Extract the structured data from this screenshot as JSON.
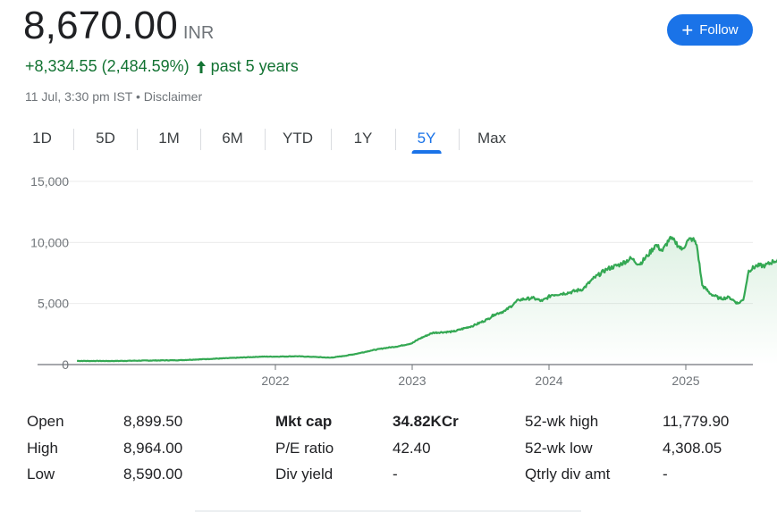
{
  "quote": {
    "price": "8,670.00",
    "currency": "INR",
    "change": "+8,334.55 (2,484.59%)",
    "change_arrow_icon": "arrow-up-icon",
    "period": "past 5 years",
    "timestamp": "11 Jul, 3:30 pm IST",
    "separator": "•",
    "disclaimer": "Disclaimer",
    "positive_color": "#137333"
  },
  "follow_button": {
    "label": "Follow",
    "icon": "plus-icon",
    "color": "#1a73e8"
  },
  "ranges": [
    "1D",
    "5D",
    "1M",
    "6M",
    "YTD",
    "1Y",
    "5Y",
    "Max"
  ],
  "active_range": "5Y",
  "chart_data": {
    "type": "area",
    "yticks": [
      "15,000",
      "10,000",
      "5,000",
      "0"
    ],
    "xticks": [
      "2022",
      "2023",
      "2024",
      "2025"
    ],
    "ylim": [
      0,
      15000
    ],
    "grid": true,
    "line_color": "#34a853",
    "points": [
      [
        2020.55,
        300
      ],
      [
        2020.8,
        290
      ],
      [
        2021.0,
        320
      ],
      [
        2021.3,
        360
      ],
      [
        2021.6,
        500
      ],
      [
        2021.9,
        650
      ],
      [
        2022.0,
        650
      ],
      [
        2022.15,
        680
      ],
      [
        2022.3,
        620
      ],
      [
        2022.4,
        560
      ],
      [
        2022.5,
        700
      ],
      [
        2022.6,
        900
      ],
      [
        2022.7,
        1150
      ],
      [
        2022.8,
        1350
      ],
      [
        2022.9,
        1500
      ],
      [
        2023.0,
        1750
      ],
      [
        2023.05,
        2100
      ],
      [
        2023.15,
        2600
      ],
      [
        2023.3,
        2700
      ],
      [
        2023.45,
        3200
      ],
      [
        2023.55,
        3700
      ],
      [
        2023.6,
        4100
      ],
      [
        2023.68,
        4400
      ],
      [
        2023.78,
        5300
      ],
      [
        2023.88,
        5450
      ],
      [
        2023.95,
        5200
      ],
      [
        2024.02,
        5700
      ],
      [
        2024.15,
        5900
      ],
      [
        2024.25,
        6200
      ],
      [
        2024.32,
        7000
      ],
      [
        2024.42,
        7800
      ],
      [
        2024.52,
        8200
      ],
      [
        2024.6,
        8700
      ],
      [
        2024.66,
        8200
      ],
      [
        2024.72,
        8900
      ],
      [
        2024.78,
        9800
      ],
      [
        2024.83,
        9300
      ],
      [
        2024.88,
        10300
      ],
      [
        2024.92,
        10100
      ],
      [
        2024.97,
        9400
      ],
      [
        2025.02,
        10200
      ],
      [
        2025.05,
        10300
      ],
      [
        2025.08,
        9800
      ],
      [
        2025.12,
        6500
      ],
      [
        2025.18,
        5800
      ],
      [
        2025.25,
        5400
      ],
      [
        2025.32,
        5500
      ],
      [
        2025.38,
        5000
      ],
      [
        2025.42,
        5300
      ],
      [
        2025.46,
        7700
      ],
      [
        2025.52,
        8100
      ],
      [
        2025.58,
        8100
      ],
      [
        2025.64,
        8450
      ],
      [
        2025.7,
        8650
      ]
    ],
    "last_point": [
      2025.7,
      8670
    ]
  },
  "stats": {
    "col1": [
      {
        "label": "Open",
        "value": "8,899.50"
      },
      {
        "label": "High",
        "value": "8,964.00"
      },
      {
        "label": "Low",
        "value": "8,590.00"
      }
    ],
    "col2": [
      {
        "label": "Mkt cap",
        "value": "34.82KCr"
      },
      {
        "label": "P/E ratio",
        "value": "42.40"
      },
      {
        "label": "Div yield",
        "value": "-"
      }
    ],
    "col3": [
      {
        "label": "52-wk high",
        "value": "11,779.90"
      },
      {
        "label": "52-wk low",
        "value": "4,308.05"
      },
      {
        "label": "Qtrly div amt",
        "value": "-"
      }
    ]
  }
}
